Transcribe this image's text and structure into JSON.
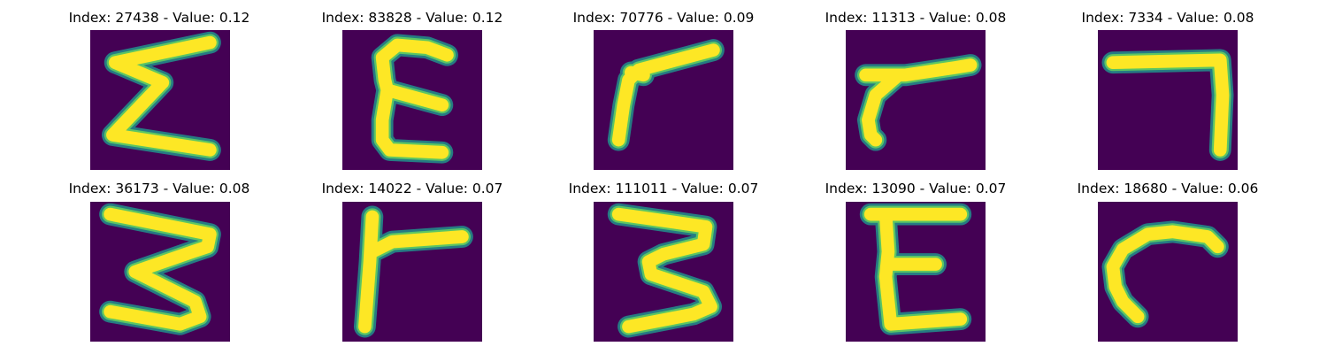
{
  "colors": {
    "background": "#440154",
    "stroke_edge": "#21918c",
    "stroke_mid": "#5ec962",
    "stroke_core": "#fde725"
  },
  "panels": [
    {
      "title": "Index: 27438 - Value: 0.12",
      "glyph": "sigma-like-E"
    },
    {
      "title": "Index: 83828 - Value: 0.12",
      "glyph": "epsilon-E"
    },
    {
      "title": "Index: 70776 - Value: 0.09",
      "glyph": "rotated-L"
    },
    {
      "title": "Index: 11313 - Value: 0.08",
      "glyph": "rotated-L-short"
    },
    {
      "title": "Index: 7334 - Value: 0.08",
      "glyph": "seven"
    },
    {
      "title": "Index: 36173 - Value: 0.08",
      "glyph": "three-reversed"
    },
    {
      "title": "Index: 14022 - Value: 0.07",
      "glyph": "F-like"
    },
    {
      "title": "Index: 111011 - Value: 0.07",
      "glyph": "three-reversed"
    },
    {
      "title": "Index: 13090 - Value: 0.07",
      "glyph": "E-block"
    },
    {
      "title": "Index: 18680 - Value: 0.06",
      "glyph": "hook"
    }
  ]
}
